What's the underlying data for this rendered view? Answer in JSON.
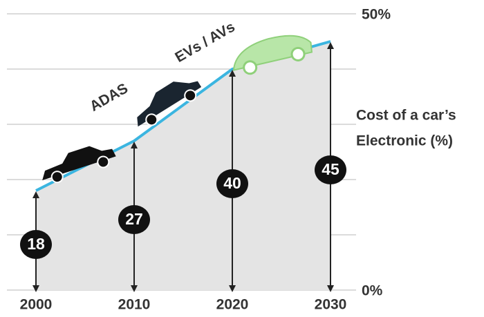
{
  "chart_data": {
    "type": "line",
    "categories": [
      "2000",
      "2010",
      "2020",
      "2030"
    ],
    "values": [
      18,
      27,
      40,
      45
    ],
    "color": "#3bb5e0",
    "area_color": "#e4e4e4",
    "ylim": [
      0,
      50
    ],
    "yticks": [
      {
        "value": 0,
        "label": "0%"
      },
      {
        "value": 10,
        "label": null
      },
      {
        "value": 20,
        "label": null
      },
      {
        "value": 30,
        "label": null
      },
      {
        "value": 40,
        "label": null
      },
      {
        "value": 50,
        "label": "50%"
      }
    ],
    "grid": true,
    "y_label": [
      "Cost of a car’s",
      "Electronic (%)"
    ],
    "annotations": [
      "ADAS",
      "EVs / AVs"
    ]
  }
}
